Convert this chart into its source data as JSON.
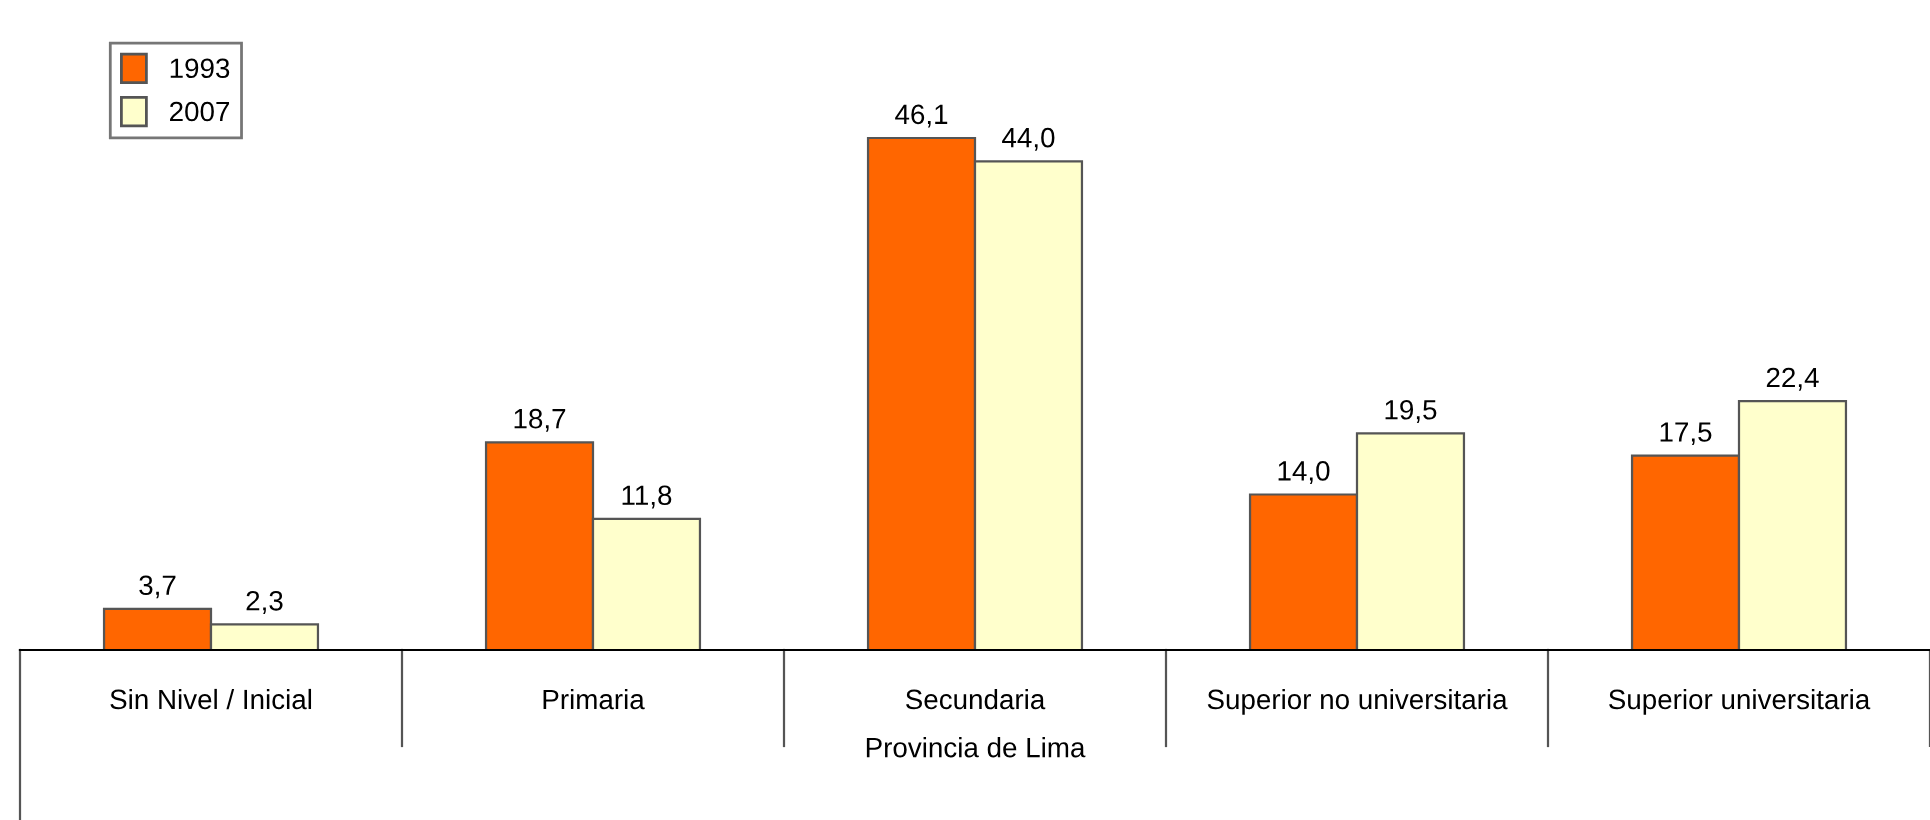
{
  "chart_data": {
    "type": "bar",
    "xlabel": "Provincia de Lima",
    "categories": [
      "Sin Nivel / Inicial",
      "Primaria",
      "Secundaria",
      "Superior no universitaria",
      "Superior universitaria"
    ],
    "series": [
      {
        "name": "1993",
        "color": "#ff6600",
        "values": [
          3.7,
          18.7,
          46.1,
          14.0,
          17.5
        ],
        "value_labels": [
          "3,7",
          "18,7",
          "46,1",
          "14,0",
          "17,5"
        ]
      },
      {
        "name": "2007",
        "color": "#ffffcc",
        "values": [
          2.3,
          11.8,
          44.0,
          19.5,
          22.4
        ],
        "value_labels": [
          "2,3",
          "11,8",
          "44,0",
          "19,5",
          "22,4"
        ]
      }
    ],
    "legend": "top left",
    "grid": false
  }
}
